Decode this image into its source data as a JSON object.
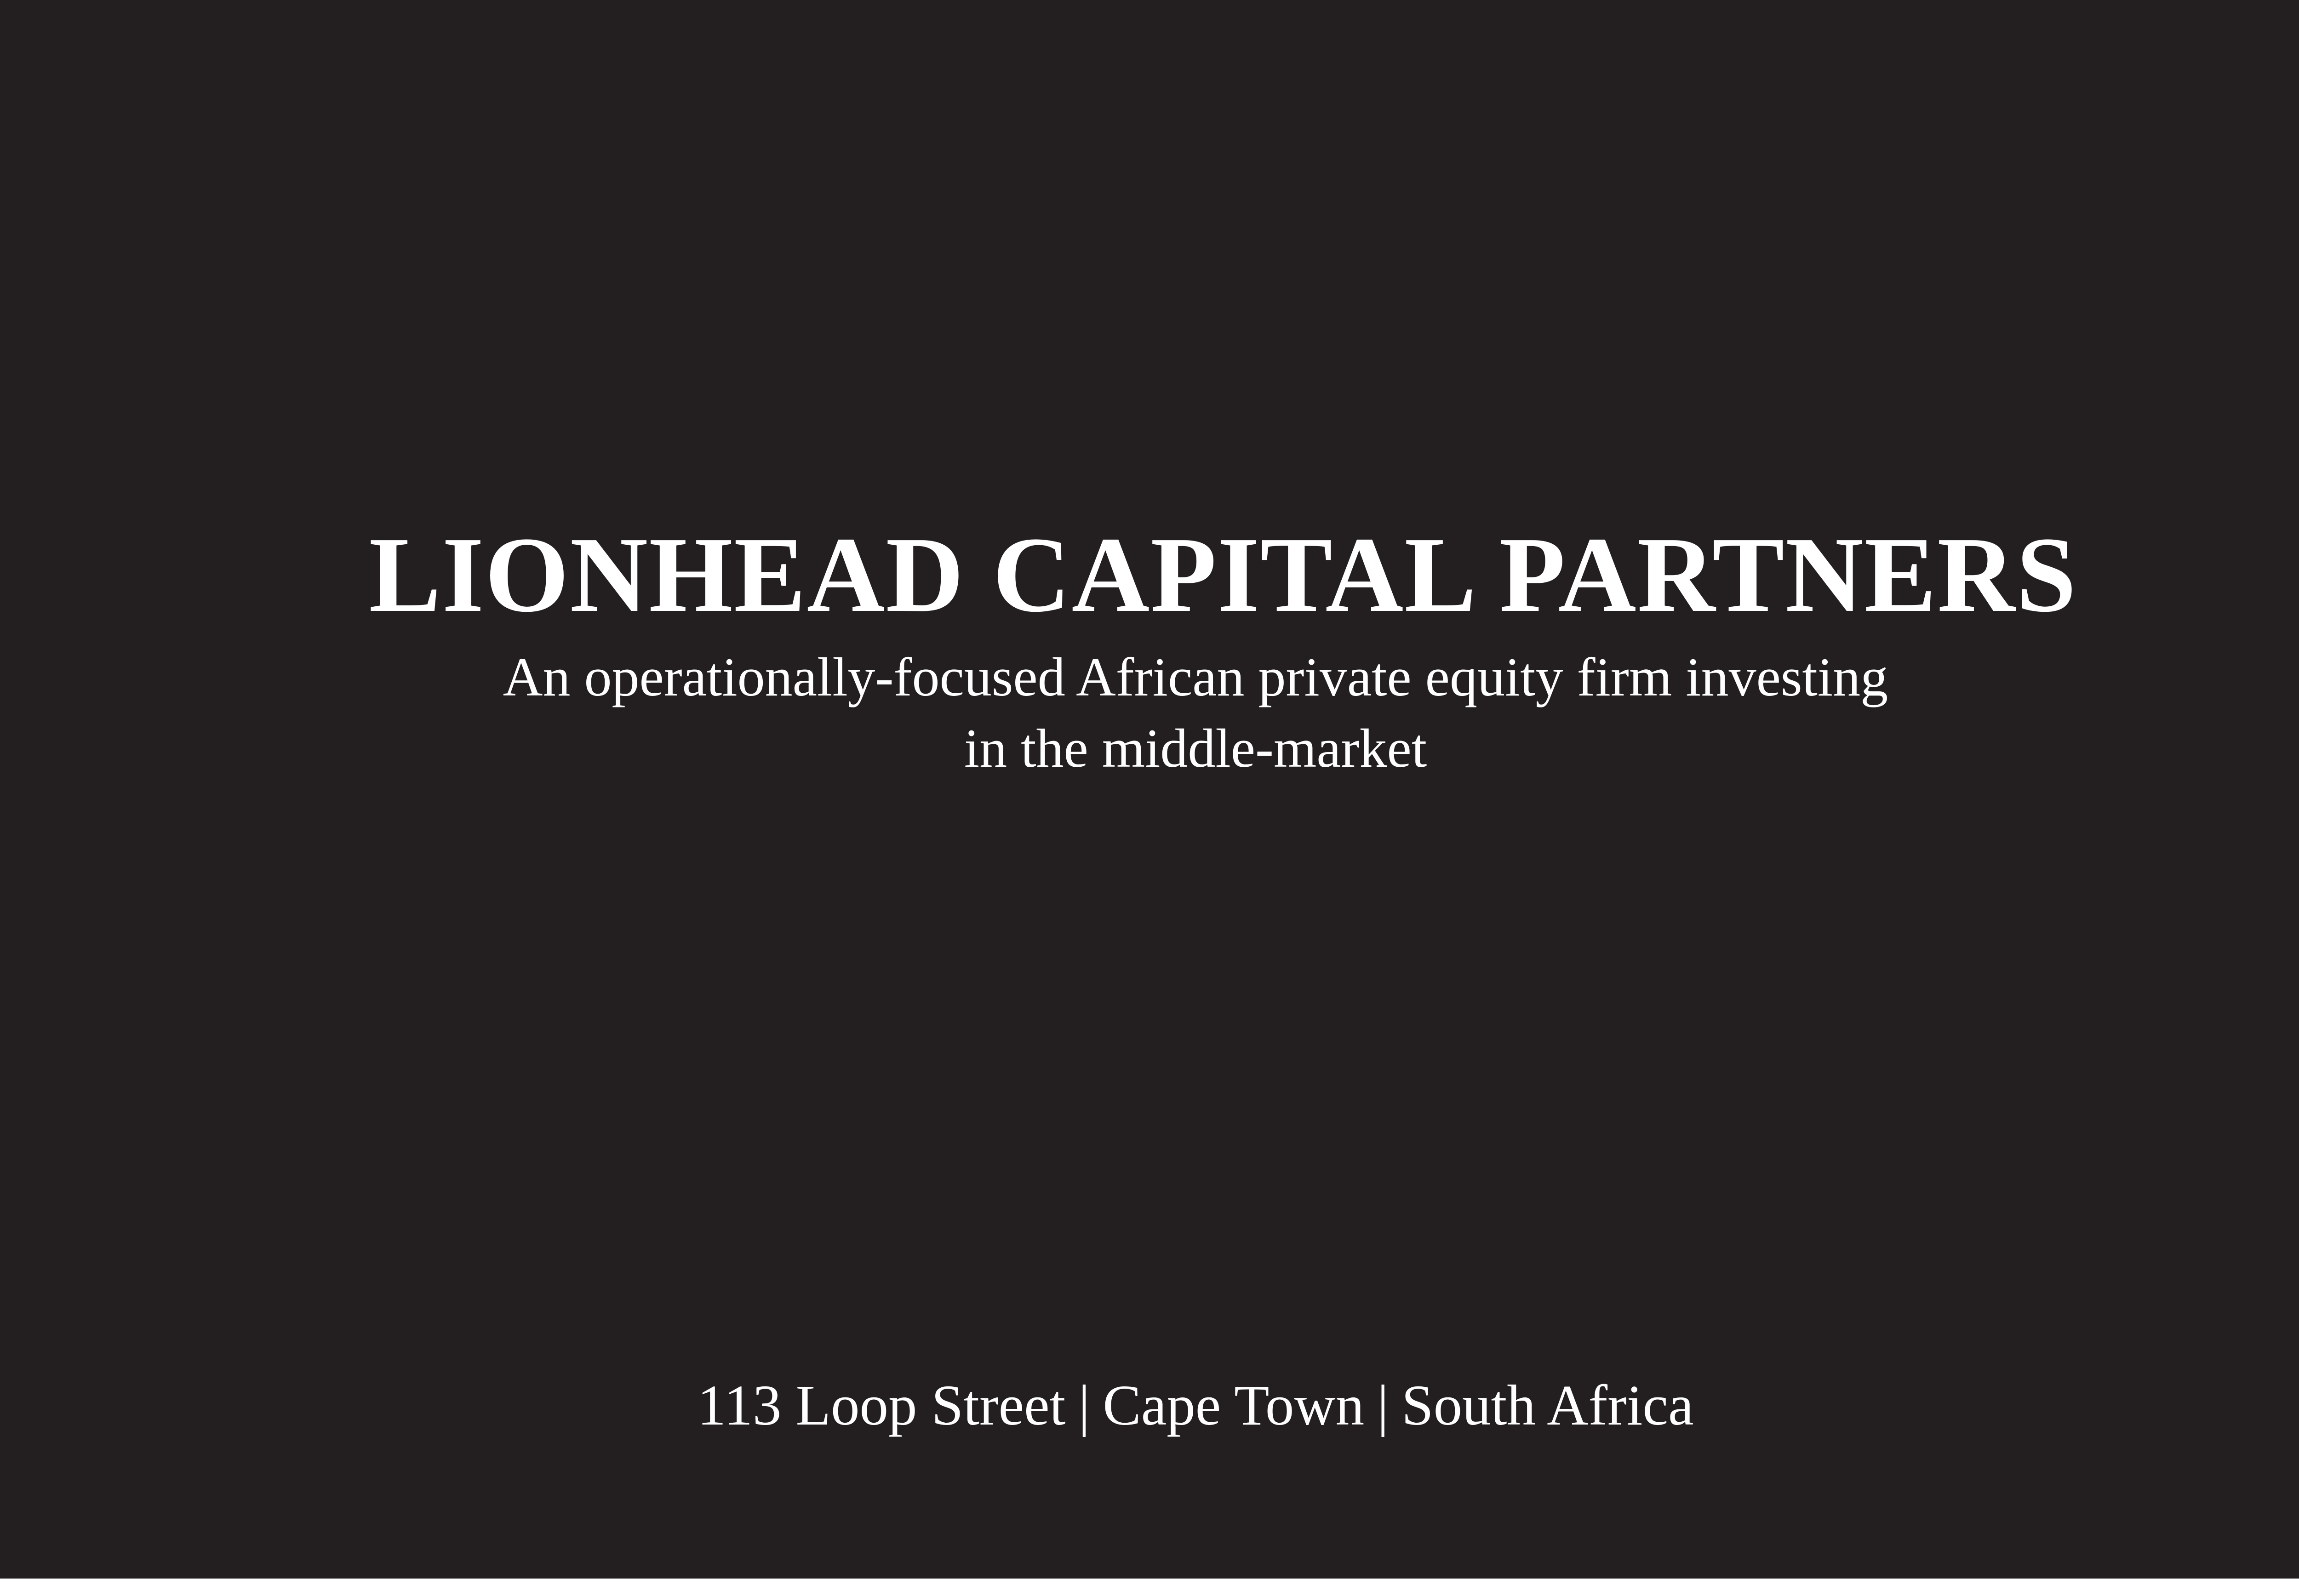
{
  "colors": {
    "background": "#231f20",
    "text": "#ffffff",
    "border": "#ffffff"
  },
  "title": "LIONHEAD CAPITAL PARTNERS",
  "tagline": {
    "line1": "An operationally-focused African private equity firm investing",
    "line2": "in the middle-market"
  },
  "address": {
    "street": "113 Loop Street",
    "city": "Cape Town",
    "country": "South Africa",
    "separator": "|"
  }
}
